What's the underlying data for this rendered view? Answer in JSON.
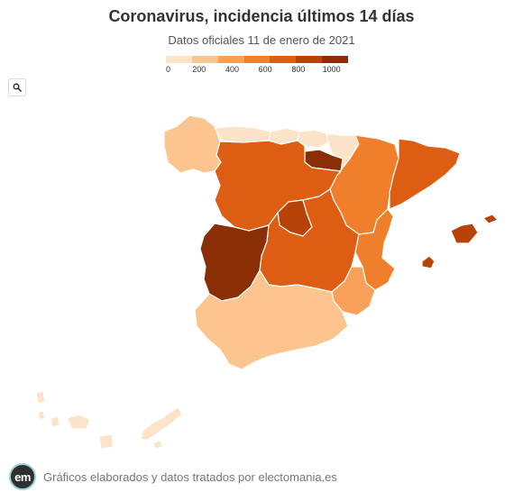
{
  "header": {
    "title": "Coronavirus, incidencia últimos 14 días",
    "subtitle": "Datos oficiales 11 de enero de 2021"
  },
  "legend": {
    "colors": [
      "#fde3c8",
      "#fcc58f",
      "#f9a05a",
      "#f07f2c",
      "#dd5d12",
      "#b84308",
      "#8a2f05"
    ],
    "ticks": [
      "0",
      "200",
      "400",
      "600",
      "800",
      "1000"
    ],
    "tick_values": [
      0,
      200,
      400,
      600,
      800,
      1000
    ],
    "max": 1100
  },
  "toolbar": {
    "zoom_icon": "search-icon"
  },
  "regions": [
    {
      "id": "galicia",
      "color": "#fcc58f"
    },
    {
      "id": "asturias",
      "color": "#fde3c8"
    },
    {
      "id": "cantabria",
      "color": "#fde3c8"
    },
    {
      "id": "pais-vasco",
      "color": "#fde3c8"
    },
    {
      "id": "navarra",
      "color": "#fde3c8"
    },
    {
      "id": "la-rioja",
      "color": "#8a2f05"
    },
    {
      "id": "aragon",
      "color": "#f07f2c"
    },
    {
      "id": "cataluna",
      "color": "#dd5d12"
    },
    {
      "id": "castilla-y-leon",
      "color": "#dd5d12"
    },
    {
      "id": "madrid",
      "color": "#b84308"
    },
    {
      "id": "castilla-la-mancha",
      "color": "#dd5d12"
    },
    {
      "id": "extremadura",
      "color": "#8a2f05"
    },
    {
      "id": "comunidad-valenciana",
      "color": "#f07f2c"
    },
    {
      "id": "murcia",
      "color": "#f9a05a"
    },
    {
      "id": "andalucia",
      "color": "#fcc58f"
    },
    {
      "id": "islas-baleares",
      "color": "#b84308"
    },
    {
      "id": "islas-canarias",
      "color": "#fde3c8"
    }
  ],
  "footer": {
    "logo_text": "em",
    "credit": "Gráficos elaborados y datos tratados por electomania.es"
  }
}
